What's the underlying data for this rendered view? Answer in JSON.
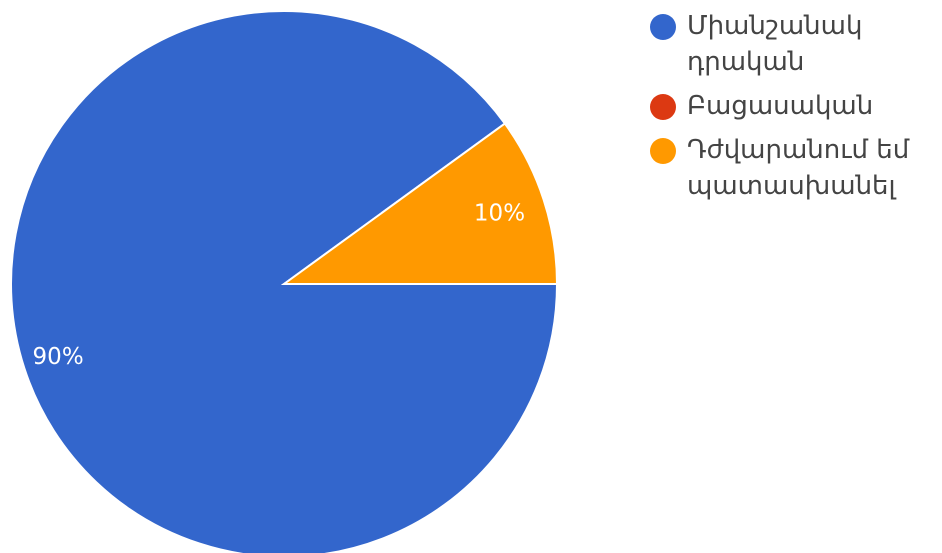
{
  "chart_data": {
    "type": "pie",
    "categories": [
      "Միանշանակ դրական",
      "Բացասական",
      "Դժվարանում եմ պատասխանել"
    ],
    "values": [
      90,
      0,
      10
    ],
    "value_labels": [
      "90%",
      "",
      "10%"
    ],
    "colors": [
      "#3366cc",
      "#dc3912",
      "#ff9900"
    ],
    "legend_position": "right",
    "start_angle_deg": 90,
    "direction": "clockwise"
  },
  "legend": {
    "items": [
      {
        "label": "Միանշանակ դրական",
        "color": "#3366cc"
      },
      {
        "label": "Բացասական",
        "color": "#dc3912"
      },
      {
        "label": "Դժվարանում եմ պատասխանել",
        "color": "#ff9900"
      }
    ]
  }
}
